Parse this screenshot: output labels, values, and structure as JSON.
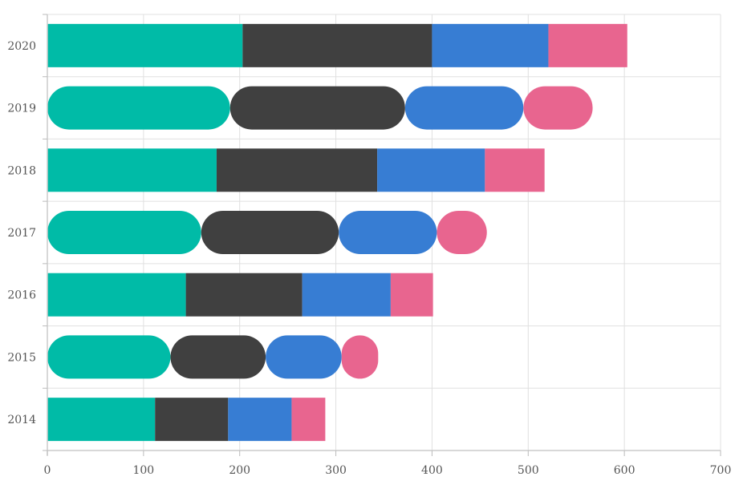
{
  "chart_data": {
    "type": "bar",
    "orientation": "horizontal",
    "stacked": true,
    "categories": [
      "2020",
      "2019",
      "2018",
      "2017",
      "2016",
      "2015",
      "2014"
    ],
    "series": [
      {
        "color": "#00bba7",
        "values": [
          203,
          190,
          176,
          160,
          144,
          128,
          112
        ]
      },
      {
        "color": "#404040",
        "values": [
          197,
          182,
          167,
          143,
          121,
          99,
          76
        ]
      },
      {
        "color": "#377dd3",
        "values": [
          121,
          123,
          112,
          102,
          92,
          79,
          66
        ]
      },
      {
        "color": "#e8658f",
        "values": [
          82,
          72,
          62,
          52,
          44,
          38,
          35
        ]
      }
    ],
    "rounded_categories": [
      "2019",
      "2017",
      "2015"
    ],
    "xlim": [
      0,
      700
    ],
    "x_ticks": [
      0,
      100,
      200,
      300,
      400,
      500,
      600,
      700
    ],
    "grid": true,
    "legend": "none"
  }
}
